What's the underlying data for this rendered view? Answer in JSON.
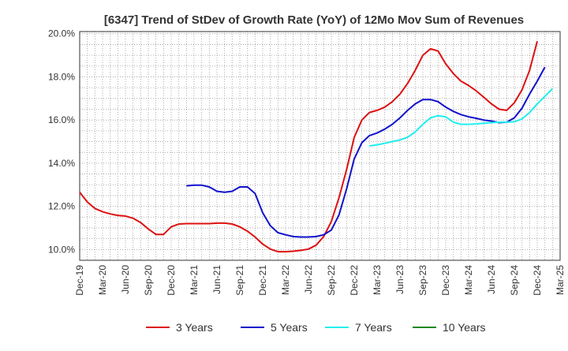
{
  "chart_data": {
    "type": "line",
    "title": "[6347]  Trend of StDev of Growth Rate (YoY) of 12Mo Mov Sum of Revenues",
    "xlabel": "",
    "ylabel": "",
    "x_tick_labels": [
      "Dec-19",
      "Mar-20",
      "Jun-20",
      "Sep-20",
      "Dec-20",
      "Mar-21",
      "Jun-21",
      "Sep-21",
      "Dec-21",
      "Mar-22",
      "Jun-22",
      "Sep-22",
      "Dec-22",
      "Mar-23",
      "Jun-23",
      "Sep-23",
      "Dec-23",
      "Mar-24",
      "Jun-24",
      "Sep-24",
      "Dec-24",
      "Mar-25"
    ],
    "y_tick_labels": [
      "10.0%",
      "12.0%",
      "14.0%",
      "16.0%",
      "18.0%",
      "20.0%"
    ],
    "y_ticks": [
      10,
      12,
      14,
      16,
      18,
      20
    ],
    "ylim": [
      9.5,
      20.1
    ],
    "x_range_months": [
      0,
      63
    ],
    "grid": true,
    "legend_position": "bottom",
    "series": [
      {
        "name": "3 Years",
        "color": "#dd1111",
        "x_start_month": 0,
        "values": [
          12.65,
          12.2,
          11.9,
          11.75,
          11.65,
          11.58,
          11.55,
          11.45,
          11.25,
          10.95,
          10.7,
          10.7,
          11.05,
          11.18,
          11.2,
          11.2,
          11.2,
          11.2,
          11.22,
          11.22,
          11.18,
          11.05,
          10.85,
          10.58,
          10.25,
          10.02,
          9.9,
          9.9,
          9.92,
          9.96,
          10.02,
          10.2,
          10.6,
          11.3,
          12.4,
          13.7,
          15.2,
          16.0,
          16.35,
          16.45,
          16.6,
          16.85,
          17.2,
          17.7,
          18.3,
          19.0,
          19.3,
          19.2,
          18.6,
          18.15,
          17.8,
          17.6,
          17.35,
          17.05,
          16.75,
          16.5,
          16.45,
          16.8,
          17.4,
          18.3,
          19.65
        ]
      },
      {
        "name": "5 Years",
        "color": "#1111cc",
        "x_start_month": 14,
        "values": [
          12.95,
          12.98,
          12.98,
          12.9,
          12.7,
          12.65,
          12.7,
          12.9,
          12.9,
          12.6,
          11.7,
          11.1,
          10.78,
          10.68,
          10.6,
          10.58,
          10.58,
          10.6,
          10.68,
          10.9,
          11.6,
          12.8,
          14.2,
          14.95,
          15.28,
          15.4,
          15.58,
          15.8,
          16.1,
          16.45,
          16.75,
          16.95,
          16.95,
          16.85,
          16.6,
          16.4,
          16.25,
          16.15,
          16.08,
          16.0,
          15.95,
          15.88,
          15.9,
          16.1,
          16.55,
          17.2,
          17.8,
          18.45
        ]
      },
      {
        "name": "7 Years",
        "color": "#22eeee",
        "x_start_month": 38,
        "values": [
          14.8,
          14.85,
          14.92,
          15.0,
          15.08,
          15.2,
          15.45,
          15.8,
          16.1,
          16.2,
          16.15,
          15.9,
          15.8,
          15.8,
          15.82,
          15.85,
          15.88,
          15.9,
          15.9,
          15.92,
          16.05,
          16.35,
          16.75,
          17.1,
          17.45
        ]
      },
      {
        "name": "10 Years",
        "color": "#228822",
        "x_start_month": 0,
        "values": []
      }
    ]
  }
}
